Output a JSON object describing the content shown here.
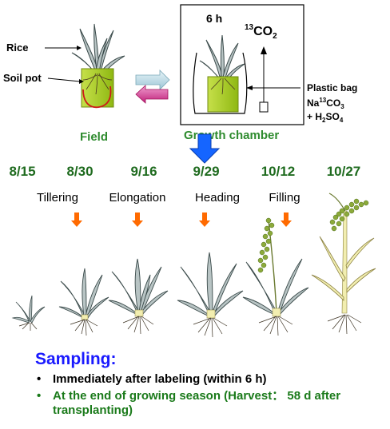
{
  "top": {
    "rice_label": "Rice",
    "soil_pot_label": "Soil pot",
    "field_label": "Field",
    "chamber_label": "Growth chamber",
    "time_label": "6 h",
    "co2_label": "CO",
    "co2_sup": "13",
    "co2_sub": "2",
    "plastic_bag_label": "Plastic bag",
    "reagent_line1": "Na",
    "reagent_line1_sup": "13",
    "reagent_line1_rest": "CO",
    "reagent_line1_sub": "3",
    "reagent_line2": "+ H",
    "reagent_line2_sub": "2",
    "reagent_line2_rest": "SO",
    "reagent_line2_sub2": "4"
  },
  "timeline": {
    "dates": [
      "8/15",
      "8/30",
      "9/16",
      "9/29",
      "10/12",
      "10/27"
    ],
    "stages": [
      "Tillering",
      "Elongation",
      "Heading",
      "Filling"
    ]
  },
  "sampling": {
    "title": "Sampling:",
    "items": [
      "Immediately after labeling (within 6 h)",
      "At the end of growing season (Harvest： 58 d after transplanting)"
    ]
  },
  "colors": {
    "date_green": "#1f6b1f",
    "field_green": "#2e8b2e",
    "pot_green": "#a6cc1a",
    "arrow_orange": "#ff6a00",
    "arrow_blue": "#1565ff",
    "sampling_blue": "#1a1aff",
    "bullet2_green": "#1a7a1a",
    "leaf_fill": "#b8c4c4",
    "leaf_stroke": "#3a4a4a",
    "stem_yellow": "#f2eeb0",
    "grain_green": "#8caa3a"
  }
}
